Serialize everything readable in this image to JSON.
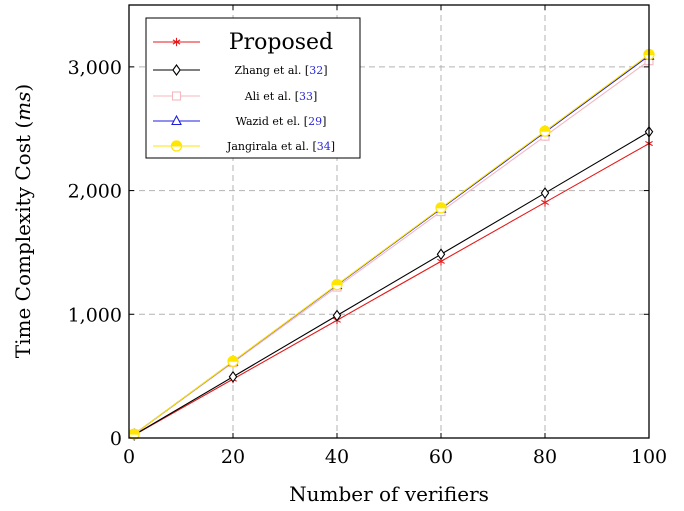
{
  "chart_data": {
    "type": "line",
    "xlabel": "Number of verifiers",
    "ylabel_main": "Time Complexity Cost (",
    "ylabel_unit": "ms",
    "ylabel_close": ")",
    "xlim": [
      0,
      100
    ],
    "ylim": [
      0,
      3500
    ],
    "x_ticks": [
      0,
      20,
      40,
      60,
      80,
      100
    ],
    "x_tick_labels": [
      "0",
      "20",
      "40",
      "60",
      "80",
      "100"
    ],
    "y_ticks": [
      0,
      1000,
      2000,
      3000
    ],
    "y_tick_labels": [
      "0",
      "1,000",
      "2,000",
      "3,000"
    ],
    "grid": true,
    "legend_position": "top-left",
    "x": [
      1,
      20,
      40,
      60,
      80,
      100
    ],
    "series": [
      {
        "name": "Proposed",
        "name_ref": "",
        "color": "#e41a1c",
        "marker": "asterisk",
        "values": [
          24,
          476,
          952,
          1428,
          1904,
          2380
        ]
      },
      {
        "name": "Zhang et al. [",
        "name_ref": "32",
        "color": "#000000",
        "marker": "diamond",
        "values": [
          25,
          495,
          990,
          1485,
          1980,
          2475
        ]
      },
      {
        "name": "Ali et al. [",
        "name_ref": "33",
        "color": "#f4b8bf",
        "marker": "square",
        "values": [
          31,
          610,
          1220,
          1830,
          2440,
          3050
        ]
      },
      {
        "name": "Wazid et el. [",
        "name_ref": "29",
        "color": "#1f1fe0",
        "marker": "triangle",
        "values": [
          31,
          618,
          1236,
          1854,
          2472,
          3090
        ]
      },
      {
        "name": "Jangirala et al. [",
        "name_ref": "34",
        "color": "#ffe600",
        "marker": "halfcircle",
        "values": [
          31,
          620,
          1240,
          1860,
          2480,
          3100
        ]
      }
    ]
  }
}
